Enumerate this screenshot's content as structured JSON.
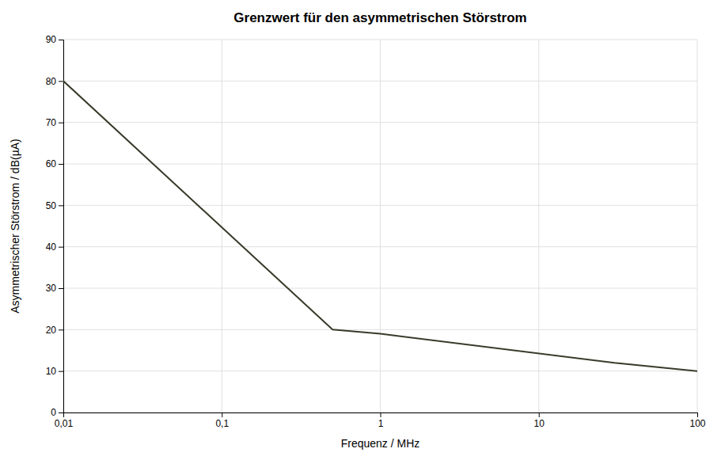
{
  "chart_data": {
    "type": "line",
    "title": "Grenzwert für den asymmetrischen Störstrom",
    "xlabel": "Frequenz / MHz",
    "ylabel": "Asymmetrischer Störstrom / dB(µA)",
    "x": [
      0.01,
      0.5,
      1.0,
      30.0,
      100.0
    ],
    "values": [
      80,
      20,
      19,
      12,
      10
    ],
    "color": "#3a3a2a",
    "log": "x",
    "xlim": [
      0.01,
      100
    ],
    "ylim": [
      0,
      90
    ],
    "xticks": [
      {
        "value": 0.01,
        "label": "0,01"
      },
      {
        "value": 0.1,
        "label": "0,1"
      },
      1,
      10,
      100
    ],
    "yticks": [
      0,
      10,
      20,
      30,
      40,
      50,
      60,
      70,
      80,
      90
    ],
    "grid": true
  }
}
